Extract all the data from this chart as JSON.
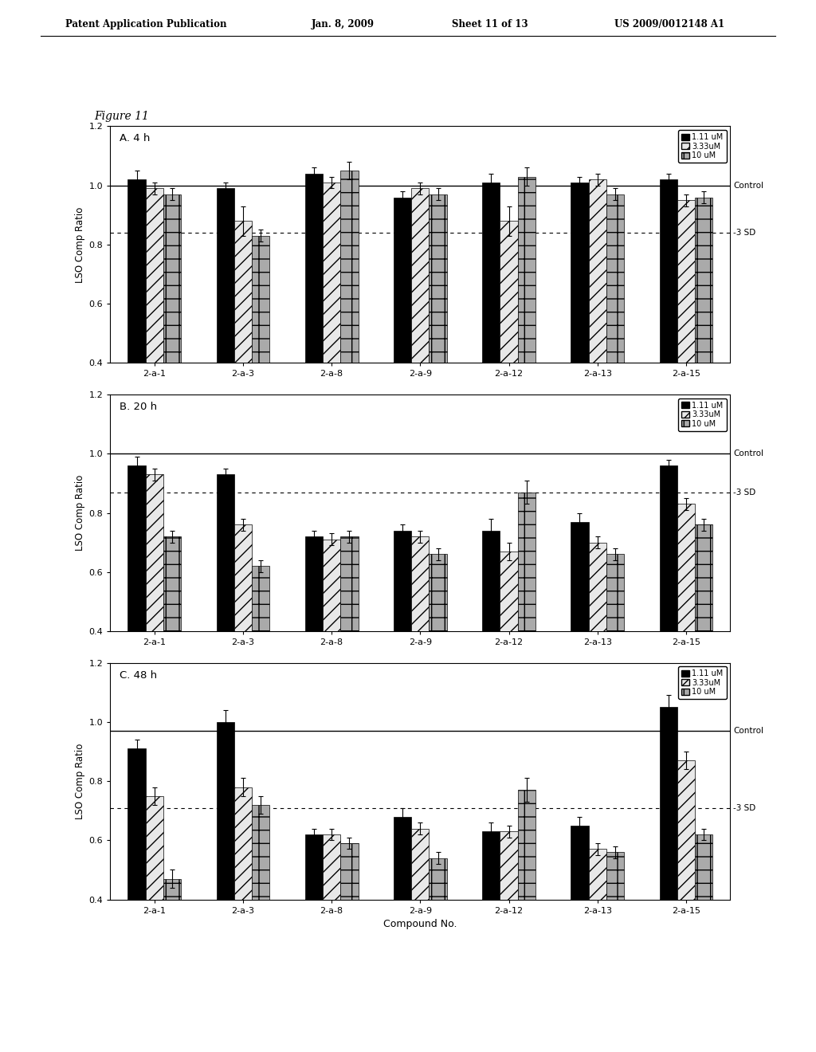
{
  "figure_label": "Figure 11",
  "header_line1": "Patent Application Publication",
  "header_line2": "Jan. 8, 2009",
  "header_line3": "Sheet 11 of 13",
  "header_line4": "US 2009/0012148 A1",
  "categories": [
    "2-a-1",
    "2-a-3",
    "2-a-8",
    "2-a-9",
    "2-a-12",
    "2-a-13",
    "2-a-15"
  ],
  "legend_labels": [
    "1.11 uM",
    "3.33uM",
    "10 uM"
  ],
  "bar_colors": [
    "#000000",
    "#e8e8e8",
    "#aaaaaa"
  ],
  "panels": [
    {
      "title": "A. 4 h",
      "control_line": 1.0,
      "sd_line": 0.84,
      "values": [
        [
          1.02,
          0.99,
          0.97
        ],
        [
          0.99,
          0.88,
          0.83
        ],
        [
          1.04,
          1.01,
          1.05
        ],
        [
          0.96,
          0.99,
          0.97
        ],
        [
          1.01,
          0.88,
          1.03
        ],
        [
          1.01,
          1.02,
          0.97
        ],
        [
          1.02,
          0.95,
          0.96
        ]
      ],
      "errors": [
        [
          0.03,
          0.02,
          0.02
        ],
        [
          0.02,
          0.05,
          0.02
        ],
        [
          0.02,
          0.02,
          0.03
        ],
        [
          0.02,
          0.02,
          0.02
        ],
        [
          0.03,
          0.05,
          0.03
        ],
        [
          0.02,
          0.02,
          0.02
        ],
        [
          0.02,
          0.02,
          0.02
        ]
      ],
      "ylim": [
        0.4,
        1.2
      ],
      "yticks": [
        0.4,
        0.6,
        0.8,
        1.0,
        1.2
      ],
      "xlabel": ""
    },
    {
      "title": "B. 20 h",
      "control_line": 1.0,
      "sd_line": 0.87,
      "values": [
        [
          0.96,
          0.93,
          0.72
        ],
        [
          0.93,
          0.76,
          0.62
        ],
        [
          0.72,
          0.71,
          0.72
        ],
        [
          0.74,
          0.72,
          0.66
        ],
        [
          0.74,
          0.67,
          0.87
        ],
        [
          0.77,
          0.7,
          0.66
        ],
        [
          0.96,
          0.83,
          0.76
        ]
      ],
      "errors": [
        [
          0.03,
          0.02,
          0.02
        ],
        [
          0.02,
          0.02,
          0.02
        ],
        [
          0.02,
          0.02,
          0.02
        ],
        [
          0.02,
          0.02,
          0.02
        ],
        [
          0.04,
          0.03,
          0.04
        ],
        [
          0.03,
          0.02,
          0.02
        ],
        [
          0.02,
          0.02,
          0.02
        ]
      ],
      "ylim": [
        0.4,
        1.2
      ],
      "yticks": [
        0.4,
        0.6,
        0.8,
        1.0,
        1.2
      ],
      "xlabel": ""
    },
    {
      "title": "C. 48 h",
      "control_line": 0.97,
      "sd_line": 0.71,
      "values": [
        [
          0.91,
          0.75,
          0.47
        ],
        [
          1.0,
          0.78,
          0.72
        ],
        [
          0.62,
          0.62,
          0.59
        ],
        [
          0.68,
          0.64,
          0.54
        ],
        [
          0.63,
          0.63,
          0.77
        ],
        [
          0.65,
          0.57,
          0.56
        ],
        [
          1.05,
          0.87,
          0.62
        ]
      ],
      "errors": [
        [
          0.03,
          0.03,
          0.03
        ],
        [
          0.04,
          0.03,
          0.03
        ],
        [
          0.02,
          0.02,
          0.02
        ],
        [
          0.03,
          0.02,
          0.02
        ],
        [
          0.03,
          0.02,
          0.04
        ],
        [
          0.03,
          0.02,
          0.02
        ],
        [
          0.04,
          0.03,
          0.02
        ]
      ],
      "ylim": [
        0.4,
        1.2
      ],
      "yticks": [
        0.4,
        0.6,
        0.8,
        1.0,
        1.2
      ],
      "xlabel": "Compound No."
    }
  ]
}
